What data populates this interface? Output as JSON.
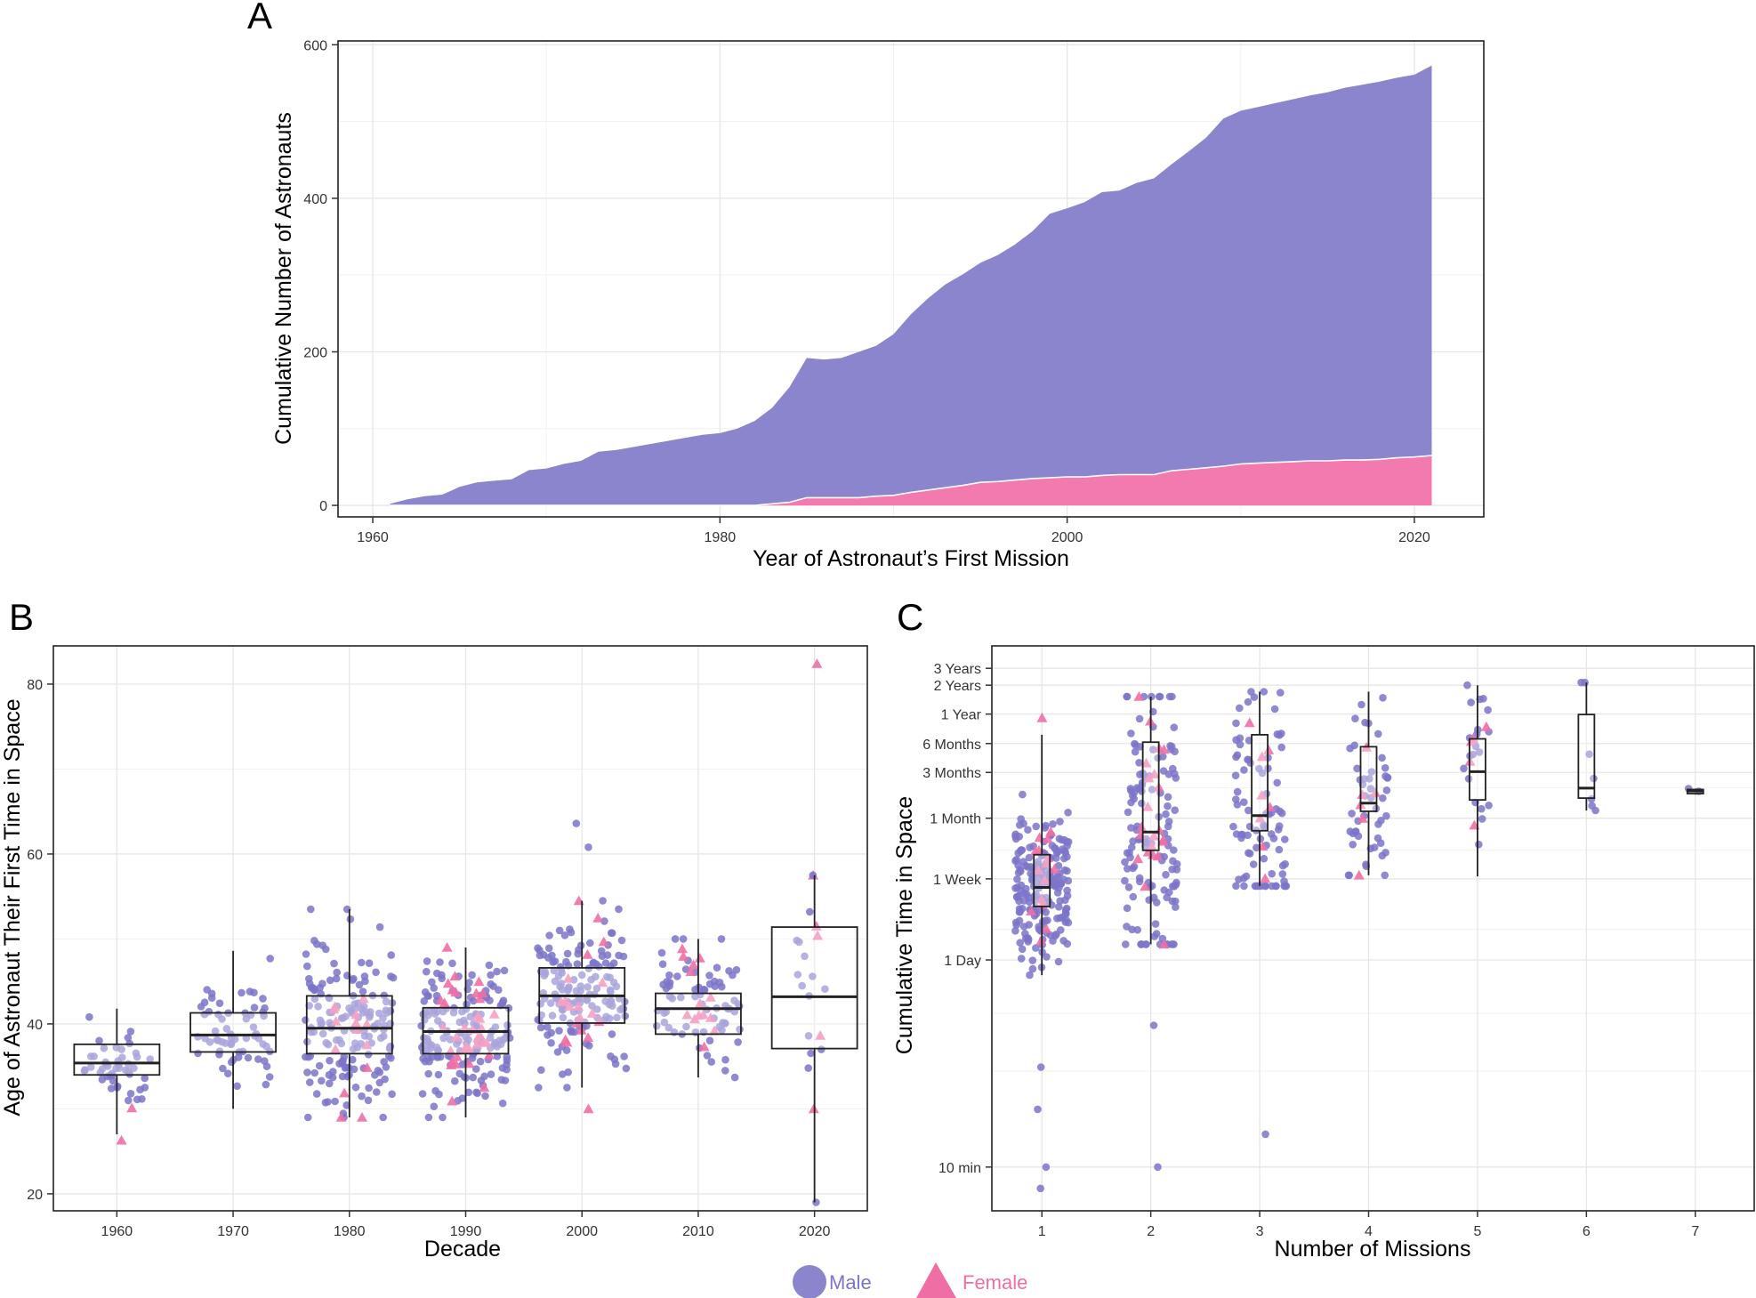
{
  "colors": {
    "male": "#7B74C9",
    "female": "#EF6FA5",
    "male_area": "#8A85CC",
    "female_area": "#F27AAE"
  },
  "legend": {
    "male": "Male",
    "female": "Female"
  },
  "chart_data": [
    {
      "panel": "A",
      "type": "area",
      "xlabel": "Year of Astronaut’s First Mission",
      "ylabel": "Cumulative Number of Astronauts",
      "xlim": [
        1958,
        2024
      ],
      "ylim": [
        -15,
        605
      ],
      "xticks": [
        1960,
        1980,
        2000,
        2020
      ],
      "yticks": [
        0,
        200,
        400,
        600
      ],
      "grid": true,
      "stacked": true,
      "x": [
        1961,
        1962,
        1963,
        1964,
        1965,
        1966,
        1967,
        1968,
        1969,
        1970,
        1971,
        1972,
        1973,
        1974,
        1975,
        1976,
        1977,
        1978,
        1979,
        1980,
        1981,
        1982,
        1983,
        1984,
        1985,
        1986,
        1987,
        1988,
        1989,
        1990,
        1991,
        1992,
        1993,
        1994,
        1995,
        1996,
        1997,
        1998,
        1999,
        2000,
        2001,
        2002,
        2003,
        2004,
        2005,
        2006,
        2007,
        2008,
        2009,
        2010,
        2011,
        2012,
        2013,
        2014,
        2015,
        2016,
        2017,
        2018,
        2019,
        2020,
        2021
      ],
      "series": [
        {
          "name": "Female",
          "values": [
            0,
            0,
            0,
            0,
            0,
            0,
            0,
            0,
            0,
            0,
            0,
            0,
            0,
            0,
            0,
            0,
            0,
            0,
            0,
            0,
            0,
            0,
            2,
            4,
            10,
            10,
            10,
            10,
            12,
            13,
            17,
            20,
            23,
            26,
            30,
            31,
            33,
            35,
            36,
            37,
            37,
            39,
            40,
            40,
            40,
            45,
            47,
            49,
            51,
            54,
            55,
            56,
            57,
            58,
            58,
            59,
            59,
            60,
            62,
            63,
            65
          ]
        },
        {
          "name": "Male",
          "values": [
            2,
            8,
            12,
            14,
            24,
            30,
            32,
            34,
            46,
            48,
            54,
            58,
            70,
            72,
            76,
            80,
            84,
            88,
            92,
            94,
            100,
            110,
            125,
            150,
            182,
            180,
            182,
            190,
            196,
            210,
            232,
            250,
            265,
            275,
            286,
            295,
            307,
            322,
            344,
            350,
            358,
            369,
            370,
            380,
            386,
            399,
            414,
            430,
            453,
            460,
            464,
            468,
            472,
            476,
            480,
            485,
            489,
            492,
            495,
            498,
            508
          ]
        }
      ]
    },
    {
      "panel": "B",
      "type": "box",
      "title": "",
      "xlabel": "Decade",
      "ylabel": "Age of Astronaut Their First Time in Space",
      "categories": [
        "1960",
        "1970",
        "1980",
        "1990",
        "2000",
        "2010",
        "2020"
      ],
      "ylim": [
        18,
        84.5
      ],
      "yticks": [
        20,
        40,
        60,
        80
      ],
      "grid": true,
      "boxes": [
        {
          "q1": 34.0,
          "median": 35.4,
          "q3": 37.6,
          "lower": 27.0,
          "upper": 41.8
        },
        {
          "q1": 36.7,
          "median": 38.7,
          "q3": 41.3,
          "lower": 30.0,
          "upper": 48.6
        },
        {
          "q1": 36.5,
          "median": 39.5,
          "q3": 43.3,
          "lower": 29.0,
          "upper": 53.5
        },
        {
          "q1": 36.5,
          "median": 39.1,
          "q3": 41.9,
          "lower": 29.0,
          "upper": 49.0
        },
        {
          "q1": 40.1,
          "median": 43.3,
          "q3": 46.6,
          "lower": 32.5,
          "upper": 54.5
        },
        {
          "q1": 38.8,
          "median": 41.8,
          "q3": 43.6,
          "lower": 33.7,
          "upper": 50.0
        },
        {
          "q1": 37.1,
          "median": 43.2,
          "q3": 51.4,
          "lower": 19.0,
          "upper": 57.5
        }
      ],
      "male_counts": [
        48,
        62,
        165,
        170,
        150,
        70,
        7
      ],
      "female_counts": [
        1,
        0,
        14,
        36,
        18,
        14,
        3
      ],
      "outliers": [
        {
          "decade": "1960",
          "sex": "Female",
          "age": 26.3
        },
        {
          "decade": "2000",
          "sex": "Male",
          "age": 63.6
        },
        {
          "decade": "2000",
          "sex": "Male",
          "age": 60.8
        },
        {
          "decade": "2000",
          "sex": "Female",
          "age": 30.0
        },
        {
          "decade": "2020",
          "sex": "Female",
          "age": 82.4
        },
        {
          "decade": "2020",
          "sex": "Female",
          "age": 51.5
        },
        {
          "decade": "2020",
          "sex": "Female",
          "age": 30.0
        },
        {
          "decade": "2020",
          "sex": "Male",
          "age": 57.5
        },
        {
          "decade": "2020",
          "sex": "Male",
          "age": 53.2
        },
        {
          "decade": "2020",
          "sex": "Male",
          "age": 45.6
        },
        {
          "decade": "2020",
          "sex": "Male",
          "age": 43.3
        },
        {
          "decade": "2020",
          "sex": "Male",
          "age": 37.0
        },
        {
          "decade": "2020",
          "sex": "Male",
          "age": 38.6
        },
        {
          "decade": "2020",
          "sex": "Male",
          "age": 34.8
        },
        {
          "decade": "2020",
          "sex": "Male",
          "age": 19.0
        }
      ]
    },
    {
      "panel": "C",
      "type": "box",
      "scale": "log",
      "xlabel": "Number of Missions",
      "ylabel": "Cumulative Time in Space",
      "categories": [
        "1",
        "2",
        "3",
        "4",
        "5",
        "6",
        "7"
      ],
      "ylim_minutes": [
        3.5,
        2700000
      ],
      "y_tick_labels": [
        "10 min",
        "1 Day",
        "1 Week",
        "1 Month",
        "3 Months",
        "6 Months",
        "1 Year",
        "2 Years",
        "3 Years"
      ],
      "y_tick_minutes": [
        10,
        1440,
        10080,
        43200,
        129600,
        259200,
        525600,
        1051200,
        1576800
      ],
      "grid": true,
      "boxes": [
        {
          "q1": 5200,
          "median": 8200,
          "q3": 18000,
          "lower": 1000,
          "upper": 320000
        },
        {
          "q1": 20000,
          "median": 31000,
          "q3": 268000,
          "lower": 2100,
          "upper": 800000
        },
        {
          "q1": 32000,
          "median": 46000,
          "q3": 320000,
          "lower": 8500,
          "upper": 900000
        },
        {
          "q1": 51000,
          "median": 62000,
          "q3": 240000,
          "lower": 11000,
          "upper": 900000
        },
        {
          "q1": 67000,
          "median": 132000,
          "q3": 290000,
          "lower": 10700,
          "upper": 1050000
        },
        {
          "q1": 70000,
          "median": 89000,
          "q3": 520000,
          "lower": 52000,
          "upper": 1120000
        },
        {
          "q1": 78000,
          "median": 83000,
          "q3": 86000,
          "lower": 76000,
          "upper": 88000
        }
      ],
      "male_counts": [
        200,
        130,
        85,
        48,
        20,
        7,
        2
      ],
      "female_counts": [
        15,
        22,
        8,
        6,
        5,
        0,
        0
      ],
      "outliers": [
        {
          "missions": "1",
          "sex": "Male",
          "minutes": 10
        },
        {
          "missions": "1",
          "sex": "Male",
          "minutes": 6
        },
        {
          "missions": "1",
          "sex": "Male",
          "minutes": 40
        },
        {
          "missions": "1",
          "sex": "Male",
          "minutes": 110
        },
        {
          "missions": "1",
          "sex": "Female",
          "minutes": 480000
        },
        {
          "missions": "2",
          "sex": "Male",
          "minutes": 10
        },
        {
          "missions": "2",
          "sex": "Male",
          "minutes": 300
        },
        {
          "missions": "3",
          "sex": "Male",
          "minutes": 22
        }
      ]
    }
  ]
}
